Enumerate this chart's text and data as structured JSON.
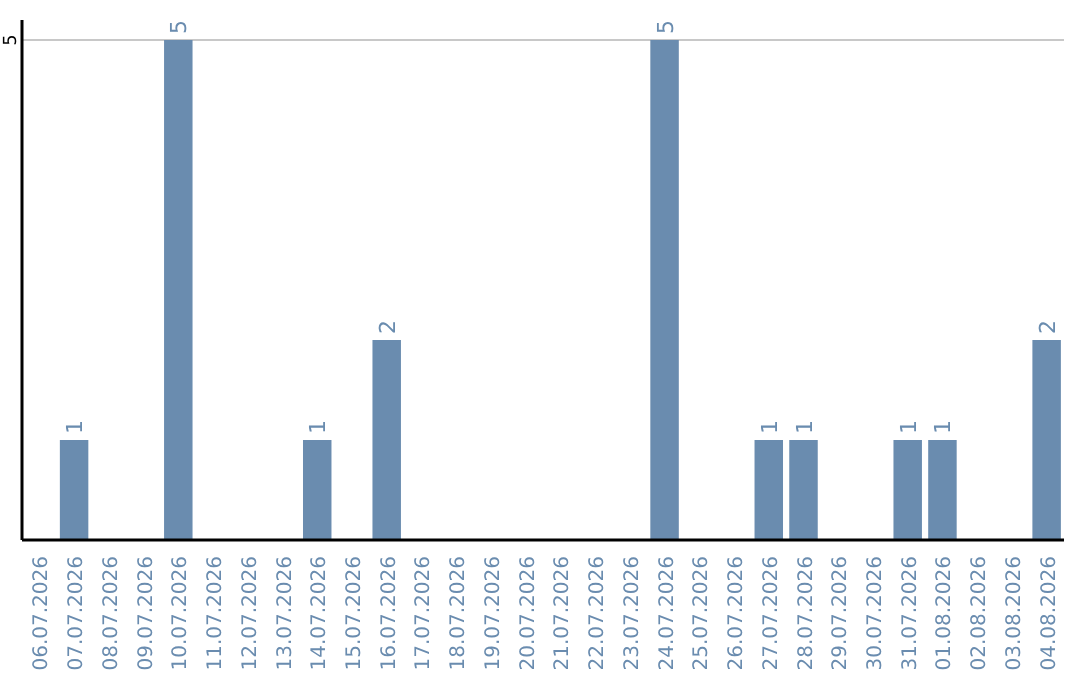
{
  "chart_data": {
    "type": "bar",
    "categories": [
      "06.07.2026",
      "07.07.2026",
      "08.07.2026",
      "09.07.2026",
      "10.07.2026",
      "11.07.2026",
      "12.07.2026",
      "13.07.2026",
      "14.07.2026",
      "15.07.2026",
      "16.07.2026",
      "17.07.2026",
      "18.07.2026",
      "19.07.2026",
      "20.07.2026",
      "21.07.2026",
      "22.07.2026",
      "23.07.2026",
      "24.07.2026",
      "25.07.2026",
      "26.07.2026",
      "27.07.2026",
      "28.07.2026",
      "29.07.2026",
      "30.07.2026",
      "31.07.2026",
      "01.08.2026",
      "02.08.2026",
      "03.08.2026",
      "04.08.2026"
    ],
    "values": [
      0,
      1,
      0,
      0,
      5,
      0,
      0,
      0,
      1,
      0,
      2,
      0,
      0,
      0,
      0,
      0,
      0,
      0,
      5,
      0,
      0,
      1,
      1,
      0,
      0,
      1,
      1,
      0,
      0,
      2
    ],
    "value_labels": [
      null,
      "1",
      null,
      null,
      "5",
      null,
      null,
      null,
      "1",
      null,
      "2",
      null,
      null,
      null,
      null,
      null,
      null,
      null,
      "5",
      null,
      null,
      "1",
      "1",
      null,
      null,
      "1",
      "1",
      null,
      null,
      "2"
    ],
    "color": "#6a8caf",
    "ylim": [
      0,
      5.2
    ],
    "yticks": [
      5
    ],
    "grid": "y"
  }
}
